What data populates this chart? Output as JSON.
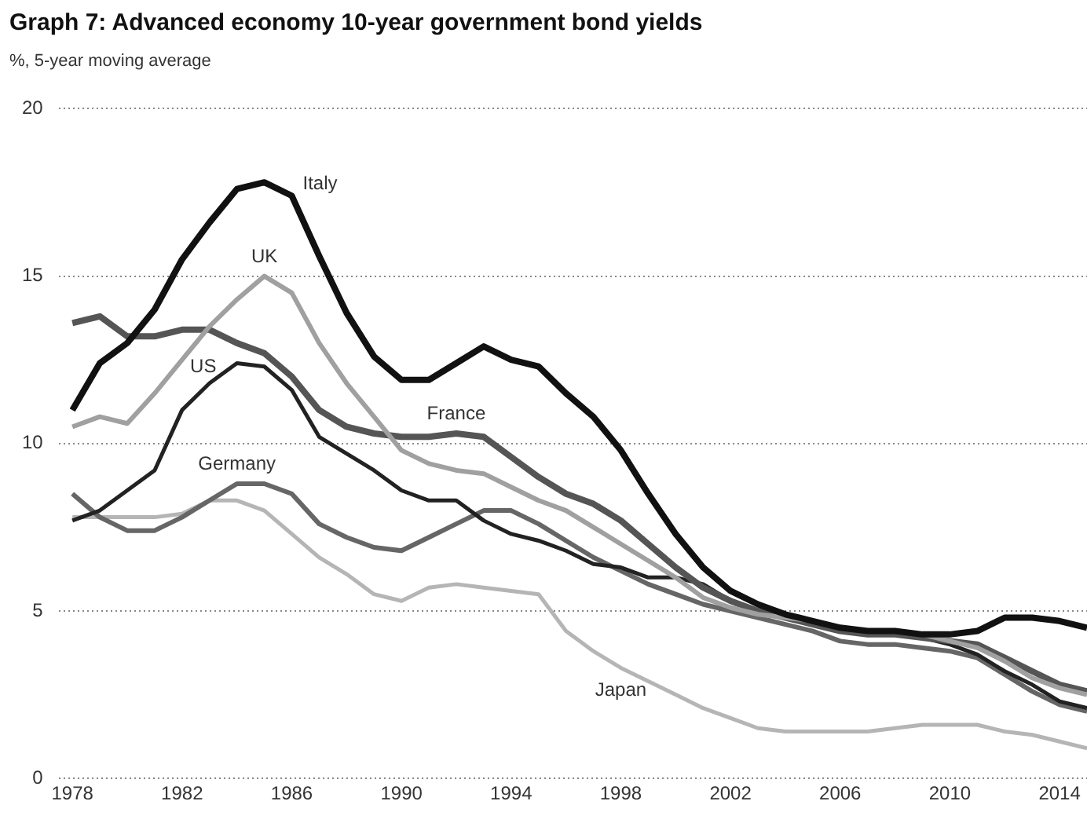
{
  "chart_data": {
    "type": "line",
    "title": "Graph 7: Advanced economy 10-year government bond yields",
    "subtitle": "%, 5-year moving average",
    "x": [
      1978,
      1979,
      1980,
      1981,
      1982,
      1983,
      1984,
      1985,
      1986,
      1987,
      1988,
      1989,
      1990,
      1991,
      1992,
      1993,
      1994,
      1995,
      1996,
      1997,
      1998,
      1999,
      2000,
      2001,
      2002,
      2003,
      2004,
      2005,
      2006,
      2007,
      2008,
      2009,
      2010,
      2011,
      2012,
      2013,
      2014,
      2015
    ],
    "series": [
      {
        "name": "Italy",
        "color": "#111111",
        "values": [
          11.0,
          12.4,
          13.0,
          14.0,
          15.5,
          16.6,
          17.6,
          17.8,
          17.4,
          15.6,
          13.9,
          12.6,
          11.9,
          11.9,
          12.4,
          12.9,
          12.5,
          12.3,
          11.5,
          10.8,
          9.8,
          8.5,
          7.3,
          6.3,
          5.6,
          5.2,
          4.9,
          4.7,
          4.5,
          4.4,
          4.4,
          4.3,
          4.3,
          4.4,
          4.8,
          4.8,
          4.7,
          4.5
        ]
      },
      {
        "name": "UK",
        "color": "#a0a0a0",
        "values": [
          10.5,
          10.8,
          10.6,
          11.5,
          12.5,
          13.5,
          14.3,
          15.0,
          14.5,
          13.0,
          11.8,
          10.8,
          9.8,
          9.4,
          9.2,
          9.1,
          8.7,
          8.3,
          8.0,
          7.5,
          7.0,
          6.5,
          6.0,
          5.4,
          5.1,
          4.9,
          4.8,
          4.7,
          4.5,
          4.4,
          4.4,
          4.3,
          4.1,
          3.9,
          3.5,
          3.0,
          2.7,
          2.5
        ]
      },
      {
        "name": "France",
        "color": "#555555",
        "values": [
          13.6,
          13.8,
          13.2,
          13.2,
          13.4,
          13.4,
          13.0,
          12.7,
          12.0,
          11.0,
          10.5,
          10.3,
          10.2,
          10.2,
          10.3,
          10.2,
          9.6,
          9.0,
          8.5,
          8.2,
          7.7,
          7.0,
          6.3,
          5.7,
          5.3,
          5.0,
          4.8,
          4.6,
          4.4,
          4.3,
          4.3,
          4.2,
          4.1,
          4.0,
          3.6,
          3.2,
          2.8,
          2.6
        ]
      },
      {
        "name": "US",
        "color": "#222222",
        "values": [
          7.7,
          8.0,
          8.6,
          9.2,
          11.0,
          11.8,
          12.4,
          12.3,
          11.6,
          10.2,
          9.7,
          9.2,
          8.6,
          8.3,
          8.3,
          7.7,
          7.3,
          7.1,
          6.8,
          6.4,
          6.3,
          6.0,
          6.0,
          5.8,
          5.3,
          5.0,
          4.8,
          4.6,
          4.4,
          4.4,
          4.4,
          4.2,
          4.0,
          3.7,
          3.2,
          2.8,
          2.3,
          2.1
        ]
      },
      {
        "name": "Germany",
        "color": "#666666",
        "values": [
          8.5,
          7.8,
          7.4,
          7.4,
          7.8,
          8.3,
          8.8,
          8.8,
          8.5,
          7.6,
          7.2,
          6.9,
          6.8,
          7.2,
          7.6,
          8.0,
          8.0,
          7.6,
          7.1,
          6.6,
          6.2,
          5.8,
          5.5,
          5.2,
          5.0,
          4.8,
          4.6,
          4.4,
          4.1,
          4.0,
          4.0,
          3.9,
          3.8,
          3.6,
          3.1,
          2.6,
          2.2,
          2.0
        ]
      },
      {
        "name": "Japan",
        "color": "#b5b5b5",
        "values": [
          7.8,
          7.8,
          7.8,
          7.8,
          7.9,
          8.3,
          8.3,
          8.0,
          7.3,
          6.6,
          6.1,
          5.5,
          5.3,
          5.7,
          5.8,
          5.7,
          5.6,
          5.5,
          4.4,
          3.8,
          3.3,
          2.9,
          2.5,
          2.1,
          1.8,
          1.5,
          1.4,
          1.4,
          1.4,
          1.4,
          1.5,
          1.6,
          1.6,
          1.6,
          1.4,
          1.3,
          1.1,
          0.9
        ]
      }
    ],
    "xlim": [
      1977.5,
      2015
    ],
    "xticks": [
      1978,
      1982,
      1986,
      1990,
      1994,
      1998,
      2002,
      2006,
      2010,
      2014
    ],
    "ylim": [
      0,
      20
    ],
    "yticks": [
      0,
      5,
      10,
      15,
      20
    ],
    "grid": "y",
    "legend": false,
    "marker": "none",
    "line_style": "solid"
  }
}
